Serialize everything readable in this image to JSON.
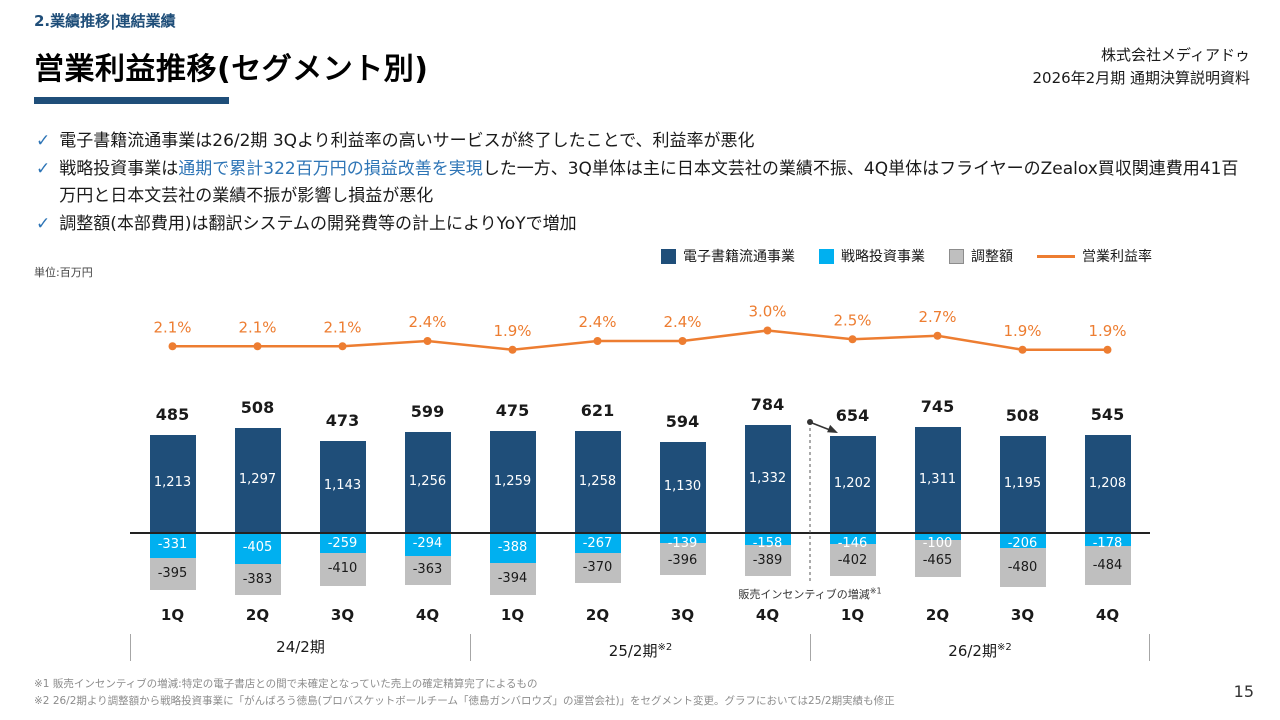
{
  "header": {
    "breadcrumb": "2.業績推移|連結業績",
    "title": "営業利益推移(セグメント別)",
    "company_name": "株式会社メディアドゥ",
    "document_title": "2026年2月期 通期決算説明資料"
  },
  "bullets": [
    {
      "parts": [
        {
          "text": "電子書籍流通事業は26/2期 3Qより利益率の高いサービスが終了したことで、利益率が悪化",
          "accent": false
        }
      ]
    },
    {
      "parts": [
        {
          "text": "戦略投資事業は",
          "accent": false
        },
        {
          "text": "通期で累計322百万円の損益改善を実現",
          "accent": true
        },
        {
          "text": "した一方、3Q単体は主に日本文芸社の業績不振、4Q単体はフライヤーのZealox買収関連費用41百万円と日本文芸社の業績不振が影響し損益が悪化",
          "accent": false
        }
      ]
    },
    {
      "parts": [
        {
          "text": "調整額(本部費用)は翻訳システムの開発費等の計上によりYoYで増加",
          "accent": false
        }
      ]
    }
  ],
  "unit_label": "単位:百万円",
  "legend": [
    {
      "label": "電子書籍流通事業",
      "type": "square",
      "color": "#1f4e79"
    },
    {
      "label": "戦略投資事業",
      "type": "square",
      "color": "#00b0f0"
    },
    {
      "label": "調整額",
      "type": "square",
      "color": "#bfbfbf"
    },
    {
      "label": "営業利益率",
      "type": "line",
      "color": "#ed7d31"
    }
  ],
  "chart_data": {
    "type": "bar",
    "stacked": true,
    "categories": [
      "1Q",
      "2Q",
      "3Q",
      "4Q",
      "1Q",
      "2Q",
      "3Q",
      "4Q",
      "1Q",
      "2Q",
      "3Q",
      "4Q"
    ],
    "period_groups": [
      {
        "label": "24/2期",
        "sup": ""
      },
      {
        "label": "25/2期",
        "sup": "※2"
      },
      {
        "label": "26/2期",
        "sup": "※2"
      }
    ],
    "series": [
      {
        "name": "電子書籍流通事業",
        "color": "#1f4e79",
        "values": [
          1213,
          1297,
          1143,
          1256,
          1259,
          1258,
          1130,
          1332,
          1202,
          1311,
          1195,
          1208
        ]
      },
      {
        "name": "戦略投資事業",
        "color": "#00b0f0",
        "values": [
          -331,
          -405,
          -259,
          -294,
          -388,
          -267,
          -139,
          -158,
          -146,
          -100,
          -206,
          -178
        ]
      },
      {
        "name": "調整額",
        "color": "#bfbfbf",
        "values": [
          -395,
          -383,
          -410,
          -363,
          -394,
          -370,
          -396,
          -389,
          -402,
          -465,
          -480,
          -484
        ]
      }
    ],
    "totals": [
      485,
      508,
      473,
      599,
      475,
      621,
      594,
      784,
      654,
      745,
      508,
      545
    ],
    "line_series": {
      "name": "営業利益率",
      "color": "#ed7d31",
      "unit": "%",
      "values": [
        2.1,
        2.1,
        2.1,
        2.4,
        1.9,
        2.4,
        2.4,
        3.0,
        2.5,
        2.7,
        1.9,
        1.9
      ]
    },
    "annotation": {
      "text": "販売インセンティブの増減",
      "sup": "※1"
    }
  },
  "footnotes": [
    "※1 販売インセンティブの増減:特定の電子書店との間で未確定となっていた売上の確定精算完了によるもの",
    "※2 26/2期より調整額から戦略投資事業に「がんばろう徳島(プロバスケットボールチーム「徳島ガンバロウズ」の運営会社)」をセグメント変更。グラフにおいては25/2期実績も修正"
  ],
  "page_number": "15"
}
